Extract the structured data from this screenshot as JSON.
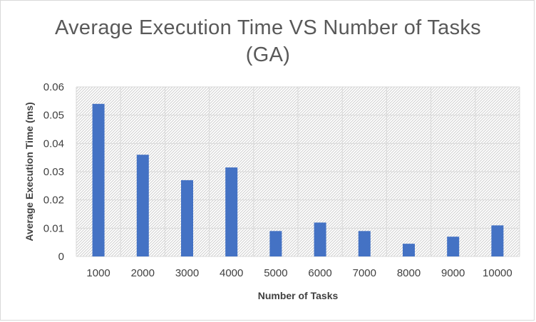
{
  "chart_data": {
    "type": "bar",
    "title_line1": "Average Execution Time VS Number of Tasks",
    "title_line2": "(GA)",
    "xlabel": "Number of Tasks",
    "ylabel": "Average Execution Time  (ms)",
    "categories": [
      "1000",
      "2000",
      "3000",
      "4000",
      "5000",
      "6000",
      "7000",
      "8000",
      "9000",
      "10000"
    ],
    "values": [
      0.054,
      0.036,
      0.027,
      0.0315,
      0.009,
      0.012,
      0.009,
      0.0045,
      0.007,
      0.011
    ],
    "ylim": [
      0,
      0.06
    ],
    "yticks": [
      "0",
      "0.01",
      "0.02",
      "0.03",
      "0.04",
      "0.05",
      "0.06"
    ],
    "grid": true,
    "bar_color": "#4472c4",
    "plot_background": "hatched light gray"
  }
}
